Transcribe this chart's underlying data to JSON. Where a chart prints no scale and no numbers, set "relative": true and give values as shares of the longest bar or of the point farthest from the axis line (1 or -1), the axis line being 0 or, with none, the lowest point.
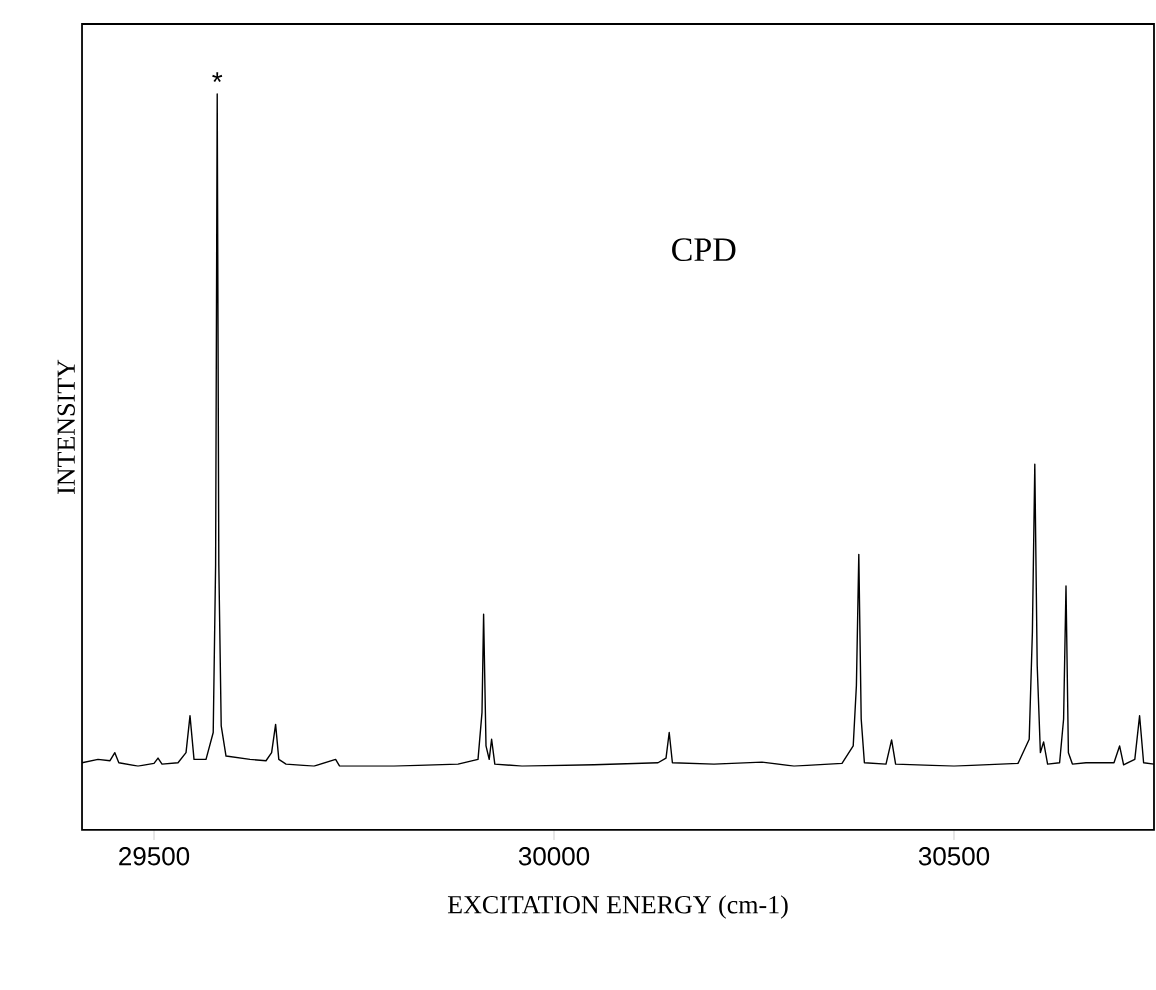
{
  "chart_data": {
    "type": "line",
    "relative": true,
    "xlabel": "EXCITATION ENERGY (cm-1)",
    "ylabel": "INTENSITY",
    "xlim": [
      29410,
      30750
    ],
    "xticks": [
      29500,
      30000,
      30500
    ],
    "tick_labels": "x",
    "annotations": [
      "CPD",
      {
        "text": "*",
        "x": 29579,
        "y": 1.0
      }
    ],
    "x": [
      29410,
      29430,
      29445,
      29451,
      29456,
      29480,
      29500,
      29505,
      29510,
      29530,
      29540,
      29545,
      29550,
      29565,
      29574,
      29577,
      29579,
      29581,
      29584,
      29590,
      29620,
      29640,
      29647,
      29652,
      29656,
      29665,
      29700,
      29727,
      29732,
      29800,
      29880,
      29905,
      29910,
      29912,
      29915,
      29919,
      29922,
      29926,
      29960,
      30050,
      30130,
      30140,
      30144,
      30148,
      30200,
      30260,
      30300,
      30360,
      30374,
      30378,
      30381,
      30384,
      30388,
      30415,
      30422,
      30427,
      30500,
      30580,
      30594,
      30598,
      30601,
      30604,
      30608,
      30612,
      30617,
      30632,
      30637,
      30640,
      30643,
      30648,
      30665,
      30700,
      30707,
      30712,
      30726,
      30732,
      30737,
      30750
    ],
    "series": [
      {
        "color": "#000000",
        "values": [
          0.005,
          0.01,
          0.008,
          0.02,
          0.005,
          0.0,
          0.004,
          0.012,
          0.003,
          0.005,
          0.02,
          0.075,
          0.01,
          0.01,
          0.05,
          0.3,
          1.0,
          0.3,
          0.06,
          0.015,
          0.01,
          0.008,
          0.02,
          0.062,
          0.01,
          0.003,
          0.0,
          0.01,
          0.0,
          0.0,
          0.003,
          0.01,
          0.08,
          0.226,
          0.03,
          0.01,
          0.04,
          0.003,
          0.0,
          0.002,
          0.005,
          0.012,
          0.05,
          0.005,
          0.003,
          0.006,
          0.0,
          0.004,
          0.03,
          0.12,
          0.315,
          0.07,
          0.005,
          0.003,
          0.039,
          0.003,
          0.0,
          0.004,
          0.04,
          0.2,
          0.449,
          0.15,
          0.02,
          0.036,
          0.003,
          0.005,
          0.07,
          0.268,
          0.02,
          0.003,
          0.005,
          0.005,
          0.03,
          0.002,
          0.01,
          0.075,
          0.005,
          0.003
        ]
      }
    ]
  }
}
